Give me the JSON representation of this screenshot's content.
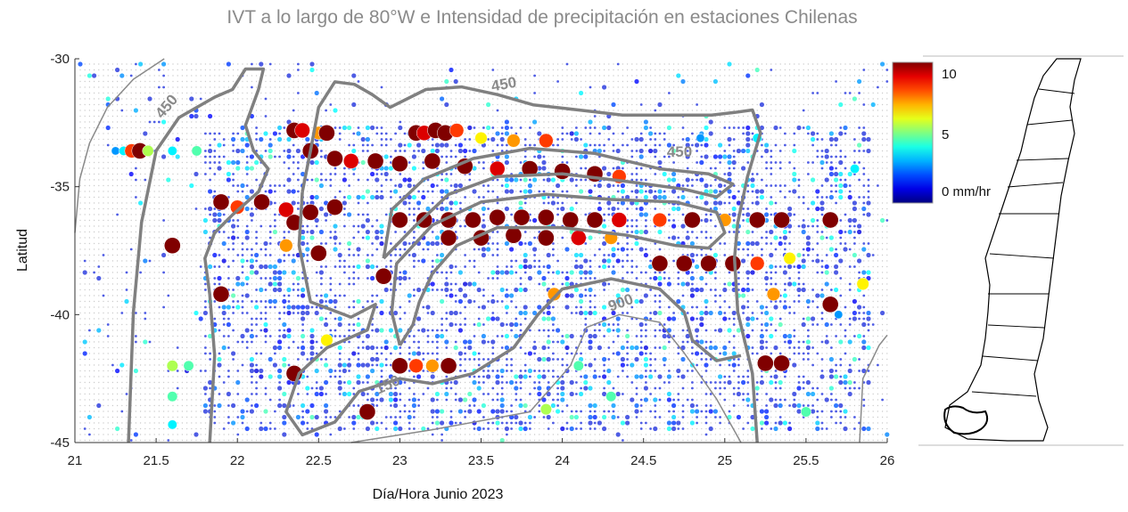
{
  "chart_data": {
    "type": "scatter",
    "title": "IVT a lo largo de 80°W e Intensidad de precipitación en estaciones Chilenas",
    "xlabel": "Día/Hora Junio 2023",
    "ylabel": "Latitud",
    "xlim": [
      21,
      26
    ],
    "ylim": [
      -45,
      -30
    ],
    "xticks": [
      "21",
      "21.5",
      "22",
      "22.5",
      "23",
      "23.5",
      "24",
      "24.5",
      "25",
      "25.5",
      "26"
    ],
    "yticks": [
      "-30",
      "-35",
      "-40",
      "-45"
    ],
    "grid": false,
    "colorbar": {
      "colormap": "jet",
      "range": [
        0,
        11
      ],
      "ticks": [
        "10",
        "5",
        "0 mm/hr"
      ]
    },
    "contours": [
      {
        "level": "450",
        "style": "thin",
        "label": "450",
        "points": [
          [
            21.55,
            -30
          ],
          [
            21.36,
            -30.8
          ],
          [
            21.2,
            -31.9
          ],
          [
            21.09,
            -33.3
          ],
          [
            21.03,
            -34.7
          ],
          [
            21.0,
            -36.8
          ]
        ]
      },
      {
        "level": "450",
        "style": "thick",
        "label": "450",
        "points": [
          [
            21.33,
            -45
          ],
          [
            21.36,
            -39.9
          ],
          [
            21.41,
            -36.4
          ],
          [
            21.5,
            -33.6
          ],
          [
            21.64,
            -32.3
          ],
          [
            21.86,
            -31.5
          ],
          [
            21.97,
            -31.2
          ],
          [
            22.05,
            -30.4
          ],
          [
            22.16,
            -30.4
          ],
          [
            22.13,
            -31.2
          ],
          [
            22.05,
            -32.6
          ],
          [
            22.1,
            -33.6
          ],
          [
            22.19,
            -34.3
          ],
          [
            22.13,
            -35.2
          ],
          [
            21.97,
            -36.1
          ],
          [
            21.86,
            -36.8
          ],
          [
            21.8,
            -37.8
          ],
          [
            21.83,
            -39.2
          ],
          [
            21.86,
            -41.6
          ],
          [
            21.83,
            -45
          ]
        ]
      },
      {
        "level": "450",
        "style": "thick",
        "label": "450",
        "points": [
          [
            22.4,
            -35.2
          ],
          [
            22.45,
            -33.6
          ],
          [
            22.5,
            -31.9
          ],
          [
            22.6,
            -30.9
          ],
          [
            22.72,
            -31.0
          ],
          [
            22.83,
            -31.4
          ],
          [
            22.94,
            -31.9
          ],
          [
            23.16,
            -31.2
          ],
          [
            23.38,
            -31.1
          ],
          [
            23.6,
            -31.4
          ],
          [
            23.82,
            -31.8
          ],
          [
            24.1,
            -32.0
          ],
          [
            24.37,
            -32.2
          ],
          [
            24.7,
            -32.2
          ],
          [
            24.92,
            -32.2
          ],
          [
            25.06,
            -32.1
          ],
          [
            25.17,
            -32.0
          ],
          [
            25.22,
            -32.9
          ],
          [
            25.14,
            -34.6
          ],
          [
            25.08,
            -36.4
          ],
          [
            25.06,
            -37.8
          ],
          [
            25.08,
            -39.9
          ],
          [
            25.17,
            -42.3
          ],
          [
            25.2,
            -45
          ]
        ]
      },
      {
        "level": "450",
        "style": "thick",
        "label": "",
        "points": [
          [
            22.4,
            -35.2
          ],
          [
            22.38,
            -37.3
          ],
          [
            22.45,
            -39.5
          ],
          [
            22.7,
            -40.1
          ],
          [
            22.85,
            -39.6
          ],
          [
            22.8,
            -40.6
          ],
          [
            22.55,
            -41.3
          ],
          [
            22.38,
            -42.3
          ],
          [
            22.3,
            -43.8
          ],
          [
            22.4,
            -44.7
          ],
          [
            22.6,
            -44.2
          ],
          [
            22.75,
            -43.0
          ],
          [
            23.0,
            -42.5
          ],
          [
            23.2,
            -42.7
          ],
          [
            23.45,
            -42.3
          ],
          [
            23.7,
            -41.3
          ],
          [
            23.85,
            -40.0
          ],
          [
            24.0,
            -39.0
          ],
          [
            24.3,
            -38.6
          ],
          [
            24.6,
            -39.0
          ],
          [
            24.75,
            -39.9
          ],
          [
            24.8,
            -41.0
          ],
          [
            24.95,
            -41.8
          ],
          [
            25.1,
            -41.6
          ]
        ]
      },
      {
        "level": "900",
        "style": "thick",
        "label": "900",
        "points": [
          [
            23.0,
            -41.2
          ],
          [
            22.95,
            -39.9
          ],
          [
            22.98,
            -38.0
          ],
          [
            23.2,
            -36.5
          ],
          [
            23.5,
            -35.6
          ],
          [
            23.9,
            -35.3
          ],
          [
            24.3,
            -35.5
          ],
          [
            24.7,
            -35.6
          ],
          [
            24.95,
            -36.0
          ],
          [
            25.0,
            -36.8
          ],
          [
            24.9,
            -37.4
          ],
          [
            24.7,
            -37.3
          ],
          [
            24.4,
            -36.9
          ],
          [
            24.0,
            -36.6
          ],
          [
            23.6,
            -36.6
          ],
          [
            23.35,
            -37.3
          ],
          [
            23.2,
            -38.4
          ],
          [
            23.12,
            -39.5
          ],
          [
            23.08,
            -40.4
          ],
          [
            23.0,
            -41.2
          ]
        ]
      },
      {
        "level": "900",
        "style": "thick",
        "label": "",
        "points": [
          [
            22.9,
            -37.8
          ],
          [
            22.95,
            -35.9
          ],
          [
            23.15,
            -34.7
          ],
          [
            23.45,
            -33.9
          ],
          [
            23.8,
            -33.5
          ],
          [
            24.2,
            -33.7
          ],
          [
            24.6,
            -34.3
          ],
          [
            24.9,
            -34.5
          ],
          [
            25.05,
            -34.9
          ],
          [
            24.95,
            -35.4
          ],
          [
            24.75,
            -35.1
          ],
          [
            24.4,
            -34.8
          ],
          [
            24.0,
            -34.5
          ],
          [
            23.6,
            -34.6
          ],
          [
            23.3,
            -35.3
          ],
          [
            23.1,
            -36.5
          ],
          [
            22.9,
            -37.8
          ]
        ]
      },
      {
        "level": "150",
        "style": "thin",
        "label": "150",
        "points": [
          [
            22.7,
            -45
          ],
          [
            23.2,
            -44.5
          ],
          [
            23.8,
            -43.8
          ],
          [
            24.05,
            -42.0
          ],
          [
            24.15,
            -40.5
          ],
          [
            24.35,
            -40.0
          ],
          [
            24.6,
            -40.3
          ],
          [
            24.75,
            -41.5
          ],
          [
            24.95,
            -43.3
          ],
          [
            25.1,
            -45
          ]
        ]
      },
      {
        "level": "150",
        "style": "thin",
        "label": "",
        "points": [
          [
            25.83,
            -45
          ],
          [
            25.85,
            -42.5
          ],
          [
            25.95,
            -41.2
          ],
          [
            26,
            -40.8
          ]
        ]
      }
    ],
    "points": [
      [
        21.25,
        -33.6,
        3
      ],
      [
        21.3,
        -33.6,
        4
      ],
      [
        21.35,
        -33.6,
        9
      ],
      [
        21.4,
        -33.6,
        11
      ],
      [
        21.45,
        -33.6,
        6
      ],
      [
        21.6,
        -33.6,
        4
      ],
      [
        21.75,
        -33.6,
        5
      ],
      [
        22.35,
        -32.8,
        11
      ],
      [
        22.4,
        -32.8,
        10
      ],
      [
        22.5,
        -32.9,
        8
      ],
      [
        22.55,
        -32.9,
        11
      ],
      [
        23.1,
        -32.9,
        11
      ],
      [
        23.15,
        -32.9,
        10
      ],
      [
        23.22,
        -32.8,
        11
      ],
      [
        23.28,
        -32.9,
        11
      ],
      [
        23.35,
        -32.8,
        9
      ],
      [
        23.5,
        -33.1,
        7
      ],
      [
        23.7,
        -33.2,
        8
      ],
      [
        23.9,
        -33.2,
        9
      ],
      [
        22.45,
        -33.6,
        11
      ],
      [
        22.6,
        -33.9,
        11
      ],
      [
        22.7,
        -34.0,
        10
      ],
      [
        22.85,
        -34.0,
        11
      ],
      [
        23.0,
        -34.1,
        11
      ],
      [
        23.2,
        -34.0,
        11
      ],
      [
        23.4,
        -34.2,
        11
      ],
      [
        23.6,
        -34.3,
        10
      ],
      [
        23.8,
        -34.3,
        11
      ],
      [
        24.0,
        -34.4,
        11
      ],
      [
        24.2,
        -34.5,
        11
      ],
      [
        24.35,
        -34.6,
        9
      ],
      [
        21.9,
        -35.6,
        11
      ],
      [
        22.0,
        -35.8,
        9
      ],
      [
        22.15,
        -35.6,
        11
      ],
      [
        22.3,
        -35.9,
        10
      ],
      [
        22.45,
        -36.0,
        11
      ],
      [
        22.6,
        -35.8,
        11
      ],
      [
        22.35,
        -36.4,
        11
      ],
      [
        23.0,
        -36.3,
        11
      ],
      [
        23.15,
        -36.3,
        11
      ],
      [
        23.3,
        -36.3,
        11
      ],
      [
        23.45,
        -36.3,
        11
      ],
      [
        23.6,
        -36.2,
        11
      ],
      [
        23.75,
        -36.2,
        11
      ],
      [
        23.9,
        -36.2,
        11
      ],
      [
        24.05,
        -36.3,
        11
      ],
      [
        24.2,
        -36.3,
        11
      ],
      [
        24.35,
        -36.3,
        10
      ],
      [
        24.6,
        -36.3,
        9
      ],
      [
        24.8,
        -36.3,
        11
      ],
      [
        25.0,
        -36.3,
        8
      ],
      [
        25.2,
        -36.3,
        11
      ],
      [
        25.35,
        -36.3,
        11
      ],
      [
        25.65,
        -36.3,
        11
      ],
      [
        23.3,
        -37.0,
        11
      ],
      [
        23.5,
        -37.0,
        11
      ],
      [
        23.7,
        -36.9,
        11
      ],
      [
        23.9,
        -37.0,
        11
      ],
      [
        24.1,
        -37.0,
        10
      ],
      [
        24.3,
        -37.0,
        8
      ],
      [
        21.6,
        -37.3,
        11
      ],
      [
        22.3,
        -37.3,
        8
      ],
      [
        22.5,
        -37.6,
        11
      ],
      [
        24.6,
        -38.0,
        11
      ],
      [
        24.75,
        -38.0,
        11
      ],
      [
        24.9,
        -38.0,
        11
      ],
      [
        25.05,
        -38.0,
        11
      ],
      [
        25.2,
        -38.0,
        9
      ],
      [
        25.4,
        -37.8,
        7
      ],
      [
        21.9,
        -39.2,
        11
      ],
      [
        22.9,
        -38.5,
        11
      ],
      [
        23.95,
        -39.2,
        8
      ],
      [
        25.65,
        -39.6,
        11
      ],
      [
        25.3,
        -39.2,
        8
      ],
      [
        25.85,
        -38.8,
        7
      ],
      [
        23.0,
        -42.0,
        11
      ],
      [
        23.1,
        -42.0,
        9
      ],
      [
        23.2,
        -42.0,
        8
      ],
      [
        23.3,
        -42.0,
        11
      ],
      [
        25.25,
        -41.9,
        11
      ],
      [
        25.35,
        -41.9,
        11
      ],
      [
        22.35,
        -42.3,
        11
      ],
      [
        22.8,
        -43.8,
        11
      ],
      [
        22.55,
        -41.0,
        7
      ],
      [
        21.6,
        -42.0,
        6
      ],
      [
        21.7,
        -42.0,
        5
      ],
      [
        21.6,
        -43.2,
        5
      ],
      [
        21.6,
        -44.3,
        4
      ],
      [
        23.9,
        -43.7,
        6
      ],
      [
        24.1,
        -42.0,
        5
      ],
      [
        24.3,
        -43.2,
        5
      ],
      [
        25.5,
        -43.8,
        5
      ],
      [
        25.7,
        -40.0,
        3
      ],
      [
        25.8,
        -34.3,
        4
      ],
      [
        25.2,
        -33.1,
        4
      ],
      [
        24.85,
        -33.1,
        3
      ]
    ],
    "map": {
      "region": "Chile"
    }
  }
}
